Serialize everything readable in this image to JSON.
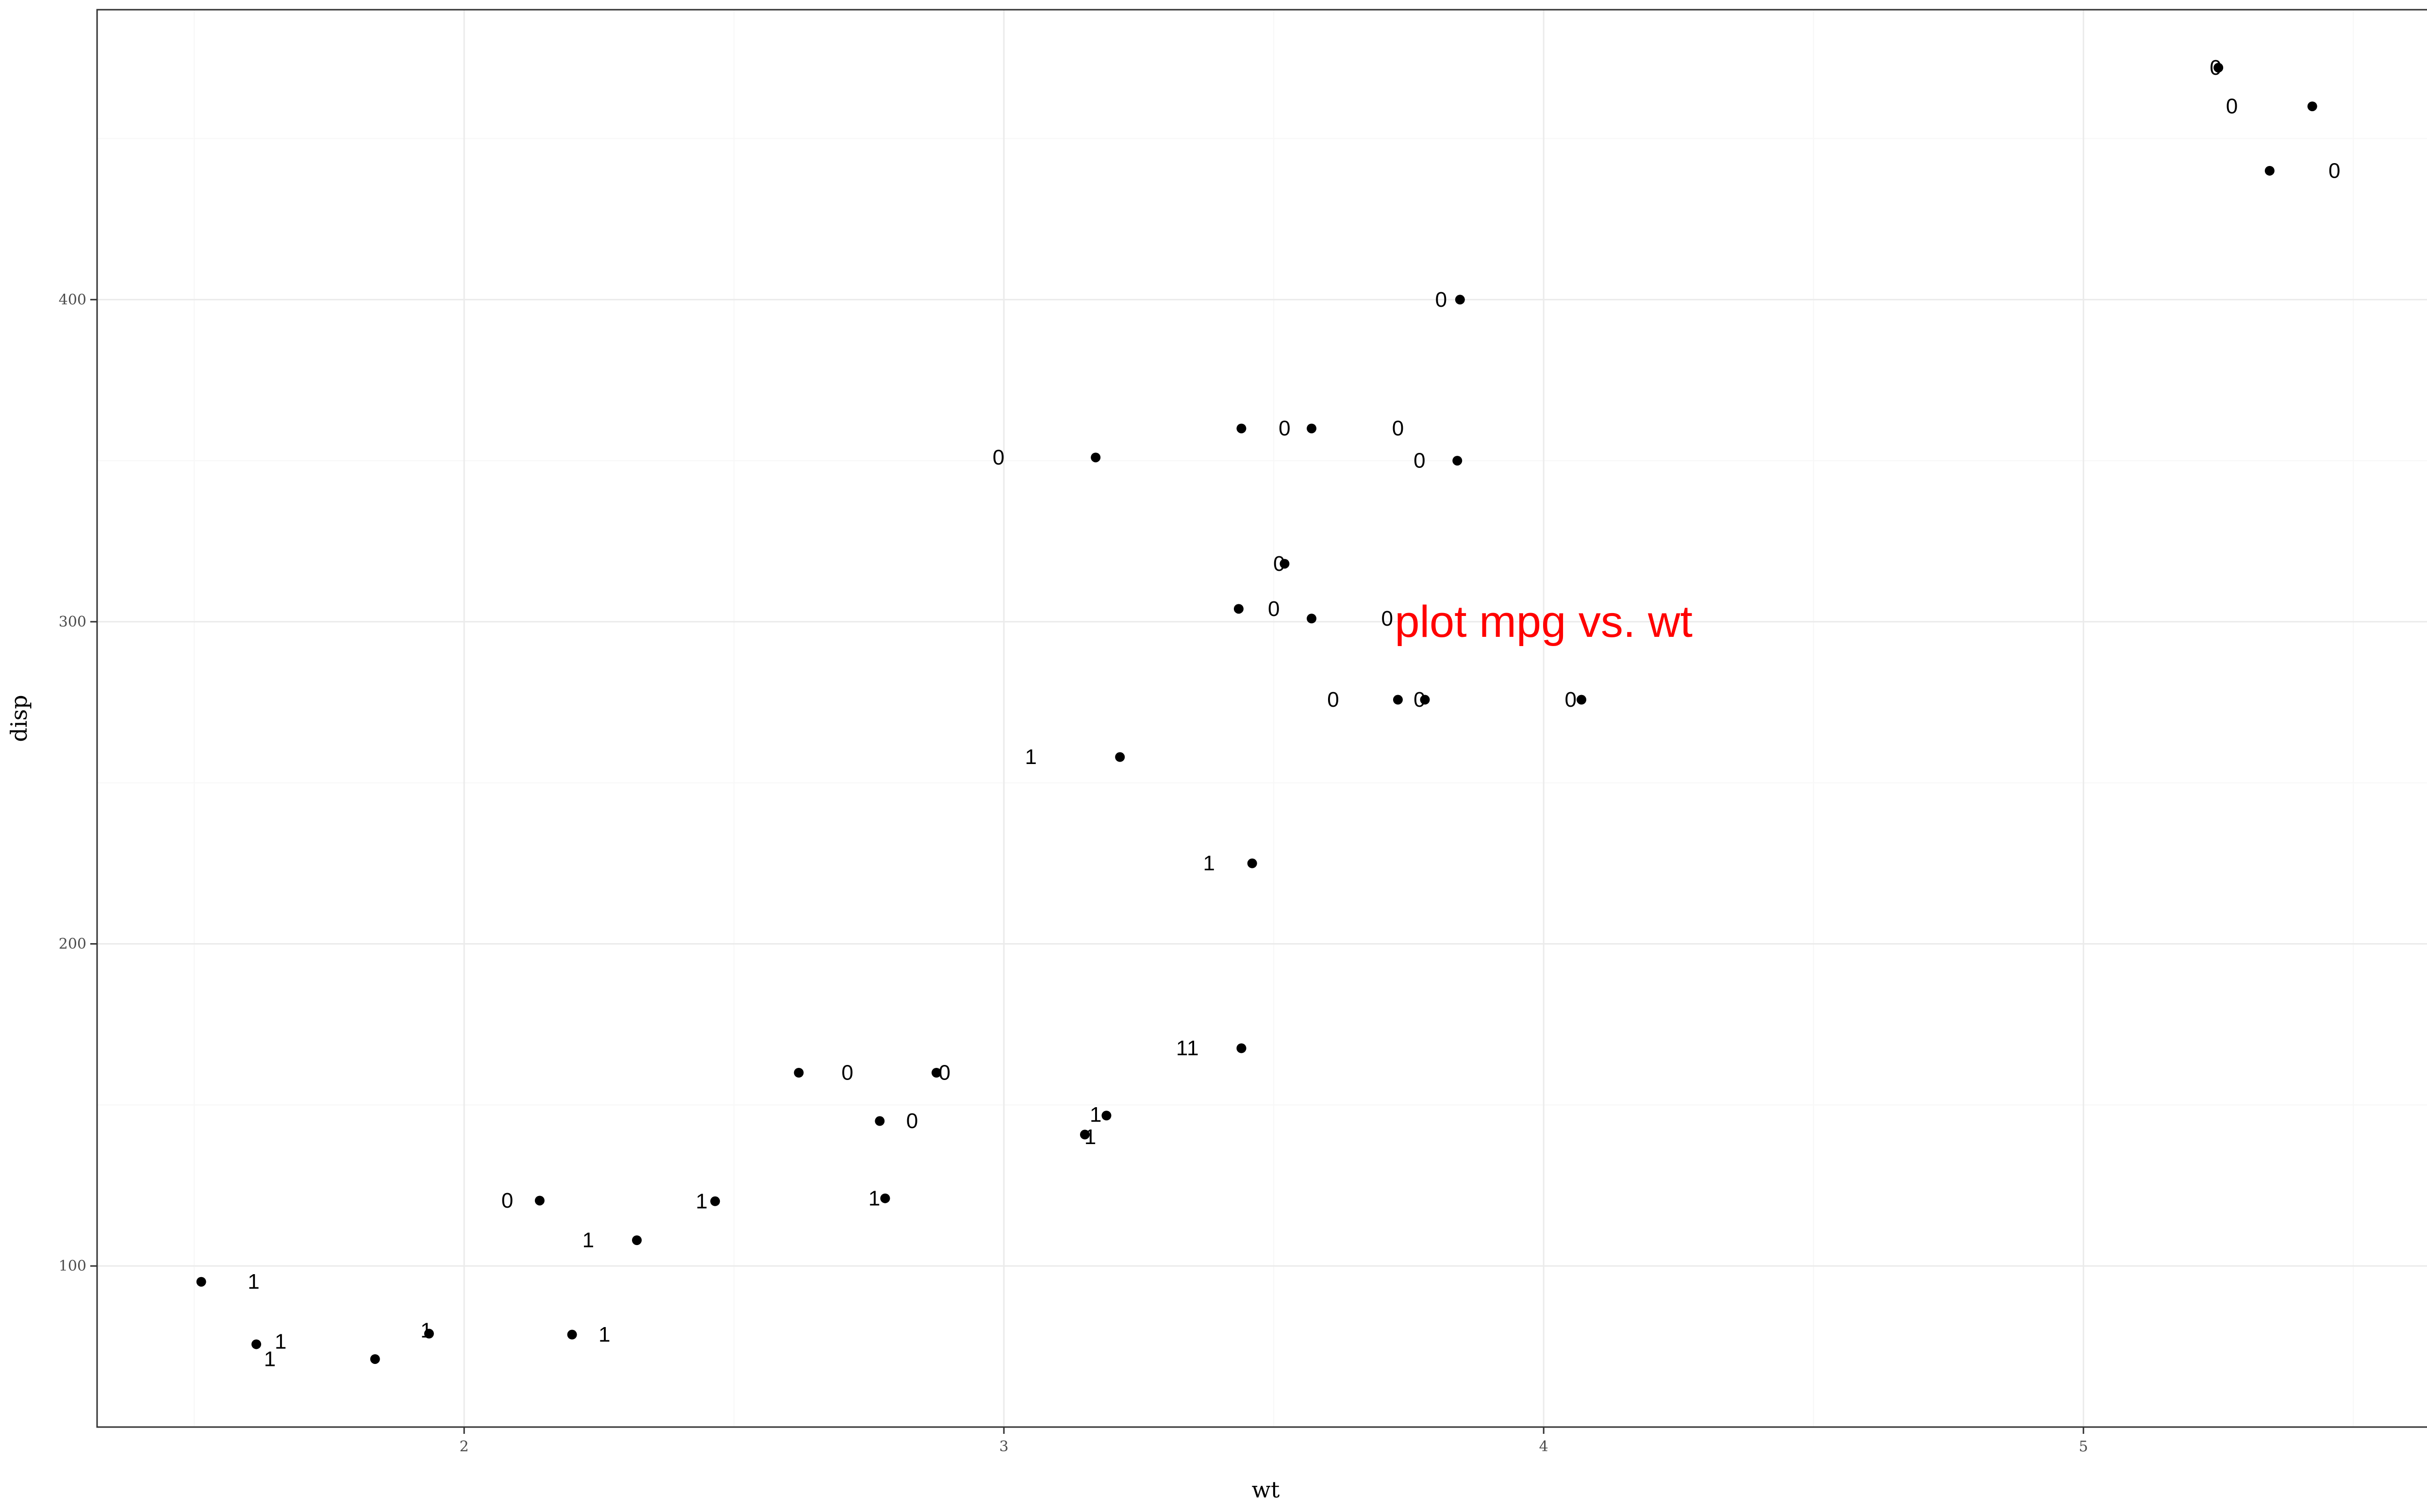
{
  "chart_data": {
    "type": "scatter",
    "title": "",
    "xlabel": "wt",
    "ylabel": "disp",
    "xlim": [
      1.32,
      5.65
    ],
    "ylim": [
      50,
      490
    ],
    "x_ticks": [
      2,
      3,
      4,
      5
    ],
    "x_tick_labels": [
      "2",
      "3",
      "4",
      "5"
    ],
    "y_ticks": [
      100,
      200,
      300,
      400
    ],
    "y_tick_labels": [
      "100",
      "200",
      "300",
      "400"
    ],
    "grid": true,
    "legend": "none",
    "point_color": "#000000",
    "label_color": "#000000",
    "annotation": {
      "text": "plot mpg vs. wt",
      "x": 4.0,
      "y": 300,
      "color": "#ff0000"
    },
    "points": [
      {
        "x": 2.62,
        "y": 160,
        "label": "0",
        "lx": 2.71,
        "ly": 160
      },
      {
        "x": 2.875,
        "y": 160,
        "label": "0",
        "lx": 2.89,
        "ly": 160
      },
      {
        "x": 2.32,
        "y": 108,
        "label": "1",
        "lx": 2.23,
        "ly": 108
      },
      {
        "x": 3.215,
        "y": 258,
        "label": "1",
        "lx": 3.05,
        "ly": 258
      },
      {
        "x": 3.44,
        "y": 360,
        "label": "0",
        "lx": 3.52,
        "ly": 360
      },
      {
        "x": 3.46,
        "y": 225,
        "label": "1",
        "lx": 3.38,
        "ly": 225
      },
      {
        "x": 3.57,
        "y": 360,
        "label": "0",
        "lx": 3.73,
        "ly": 360
      },
      {
        "x": 3.19,
        "y": 146.7,
        "label": "1",
        "lx": 3.17,
        "ly": 147
      },
      {
        "x": 3.15,
        "y": 140.8,
        "label": "1",
        "lx": 3.16,
        "ly": 140
      },
      {
        "x": 3.44,
        "y": 167.6,
        "label": "1",
        "lx": 3.33,
        "ly": 167.6
      },
      {
        "x": 3.44,
        "y": 167.6,
        "label": "1",
        "lx": 3.35,
        "ly": 167.6
      },
      {
        "x": 4.07,
        "y": 275.8,
        "label": "0",
        "lx": 4.05,
        "ly": 275.8
      },
      {
        "x": 3.73,
        "y": 275.8,
        "label": "0",
        "lx": 3.61,
        "ly": 275.8
      },
      {
        "x": 3.78,
        "y": 275.8,
        "label": "0",
        "lx": 3.77,
        "ly": 275.8
      },
      {
        "x": 5.25,
        "y": 472,
        "label": "0",
        "lx": 5.245,
        "ly": 472
      },
      {
        "x": 5.424,
        "y": 460,
        "label": "0",
        "lx": 5.275,
        "ly": 460
      },
      {
        "x": 5.345,
        "y": 440,
        "label": "0",
        "lx": 5.465,
        "ly": 440
      },
      {
        "x": 2.2,
        "y": 78.7,
        "label": "1",
        "lx": 2.26,
        "ly": 78.7
      },
      {
        "x": 1.615,
        "y": 75.7,
        "label": "1",
        "lx": 1.66,
        "ly": 76.5
      },
      {
        "x": 1.835,
        "y": 71.1,
        "label": "1",
        "lx": 1.64,
        "ly": 71.1
      },
      {
        "x": 2.465,
        "y": 120.1,
        "label": "1",
        "lx": 2.44,
        "ly": 120.1
      },
      {
        "x": 3.52,
        "y": 318,
        "label": "0",
        "lx": 3.51,
        "ly": 318
      },
      {
        "x": 3.435,
        "y": 304,
        "label": "0",
        "lx": 3.5,
        "ly": 304
      },
      {
        "x": 3.84,
        "y": 350,
        "label": "0",
        "lx": 3.77,
        "ly": 350
      },
      {
        "x": 3.845,
        "y": 400,
        "label": "0",
        "lx": 3.81,
        "ly": 400
      },
      {
        "x": 1.935,
        "y": 79,
        "label": "1",
        "lx": 1.93,
        "ly": 80
      },
      {
        "x": 2.14,
        "y": 120.3,
        "label": "0",
        "lx": 2.08,
        "ly": 120.3
      },
      {
        "x": 1.513,
        "y": 95.1,
        "label": "1",
        "lx": 1.61,
        "ly": 95.1
      },
      {
        "x": 3.17,
        "y": 351,
        "label": "0",
        "lx": 2.99,
        "ly": 351
      },
      {
        "x": 2.77,
        "y": 145,
        "label": "0",
        "lx": 2.83,
        "ly": 145
      },
      {
        "x": 3.57,
        "y": 301,
        "label": "0",
        "lx": 3.71,
        "ly": 301
      },
      {
        "x": 2.78,
        "y": 121,
        "label": "1",
        "lx": 2.76,
        "ly": 121
      }
    ]
  }
}
